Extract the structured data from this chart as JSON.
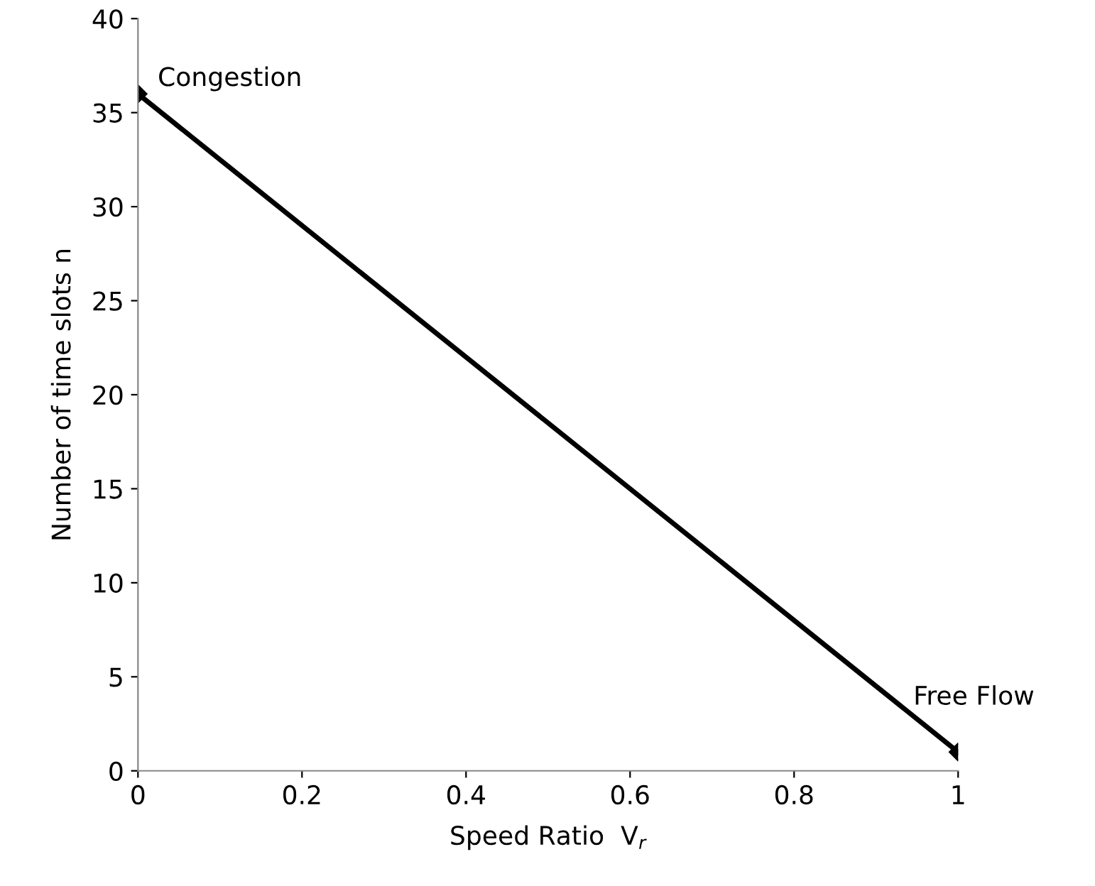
{
  "chart_data": {
    "type": "line",
    "xlabel": "Speed Ratio  V$_{r}$",
    "ylabel": "Number of time slots n",
    "x": [
      0,
      1
    ],
    "series": [
      {
        "color": "#000000",
        "values": [
          36,
          1
        ]
      }
    ],
    "marker": "diamond",
    "line_style": "solid",
    "grid": false,
    "legend": false,
    "xlim": [
      0,
      1
    ],
    "xticks": [
      0,
      0.2,
      0.4,
      0.6,
      0.8,
      1
    ],
    "ylim": [
      0,
      40
    ],
    "yticks": [
      0,
      5,
      10,
      15,
      20,
      25,
      30,
      35,
      40
    ],
    "annotations": [
      {
        "text": "Congestion",
        "x": 0,
        "y": 36
      },
      {
        "text": "Free Flow",
        "x": 1,
        "y": 1
      }
    ]
  }
}
